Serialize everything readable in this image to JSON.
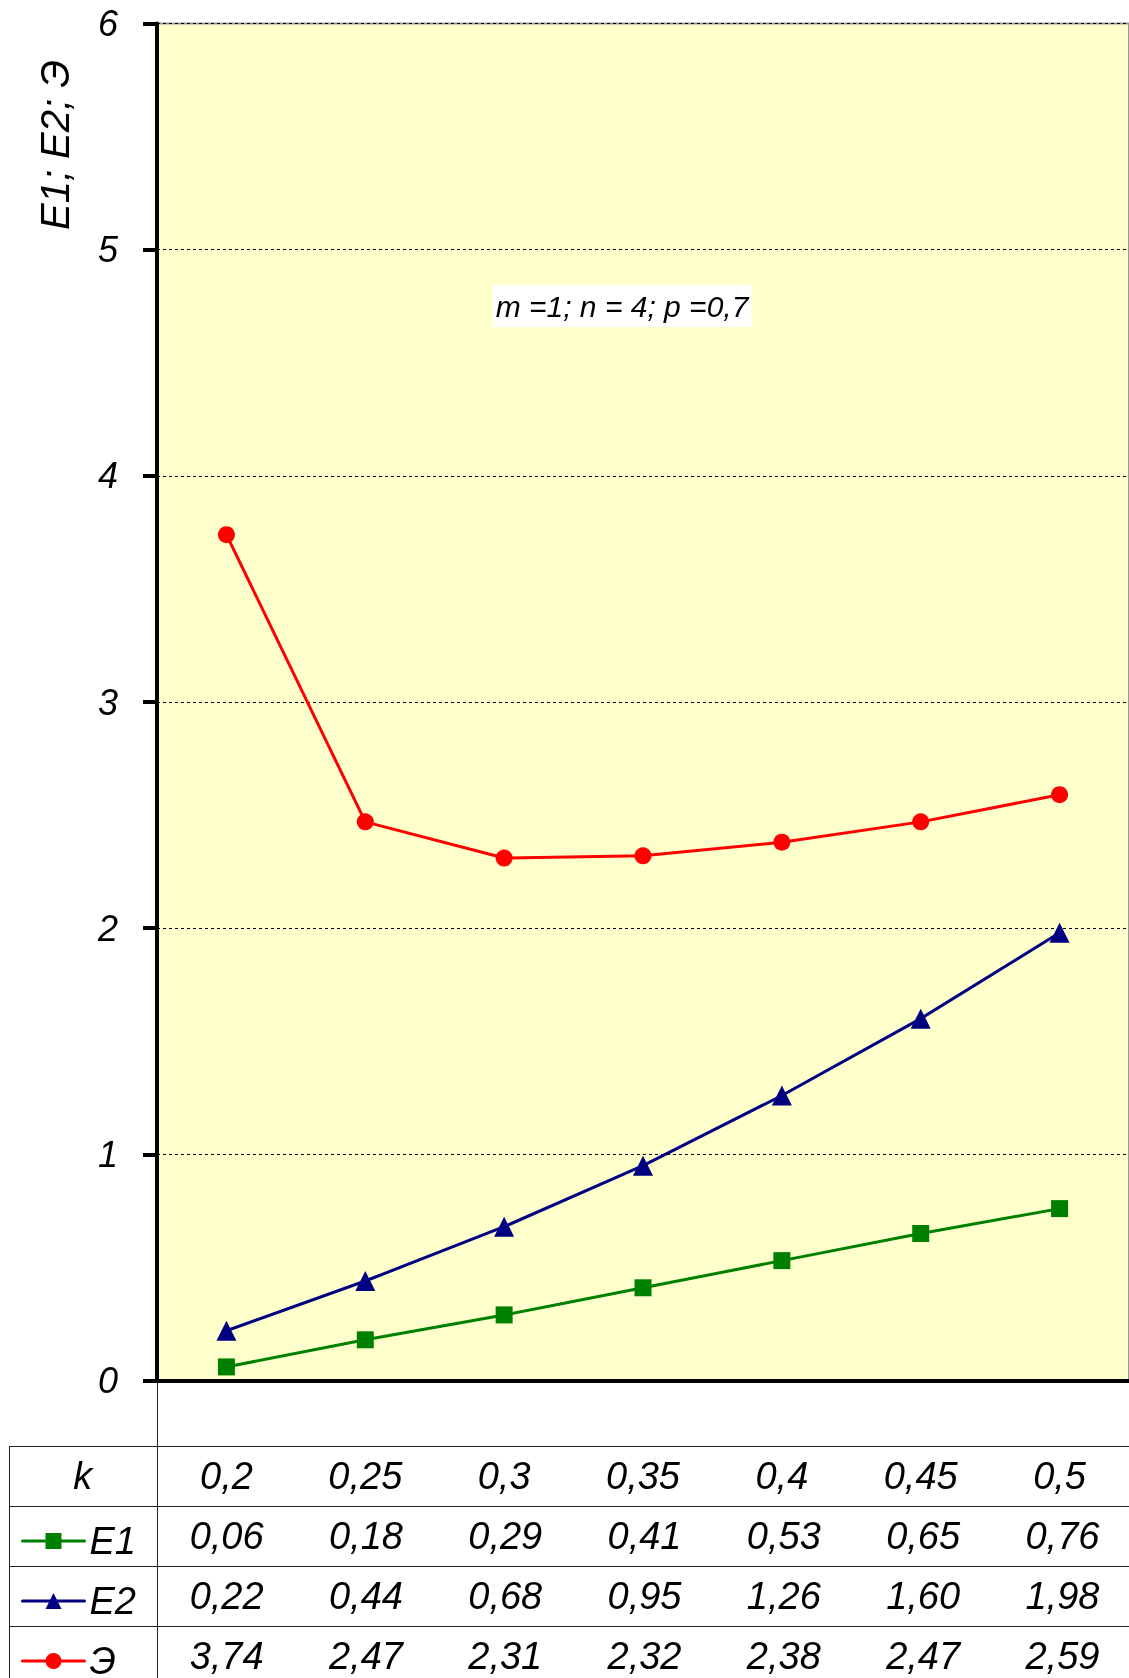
{
  "chart_data": {
    "type": "line",
    "ylabel": "E1; E2; Э",
    "xlabel": "k",
    "categories": [
      "0,2",
      "0,25",
      "0,3",
      "0,35",
      "0,4",
      "0,45",
      "0,5"
    ],
    "series": [
      {
        "name": "E1",
        "color": "#008000",
        "marker": "square",
        "values": [
          0.06,
          0.18,
          0.29,
          0.41,
          0.53,
          0.65,
          0.76
        ],
        "value_labels": [
          "0,06",
          "0,18",
          "0,29",
          "0,41",
          "0,53",
          "0,65",
          "0,76"
        ]
      },
      {
        "name": "E2",
        "color": "#000080",
        "marker": "triangle",
        "values": [
          0.22,
          0.44,
          0.68,
          0.95,
          1.26,
          1.6,
          1.98
        ],
        "value_labels": [
          "0,22",
          "0,44",
          "0,68",
          "0,95",
          "1,26",
          "1,60",
          "1,98"
        ]
      },
      {
        "name": "Э",
        "color": "#ff0000",
        "marker": "circle",
        "values": [
          3.74,
          2.47,
          2.31,
          2.32,
          2.38,
          2.47,
          2.59
        ],
        "value_labels": [
          "3,74",
          "2,47",
          "2,31",
          "2,32",
          "2,38",
          "2,47",
          "2,59"
        ]
      }
    ],
    "ylim": [
      0,
      6
    ],
    "yticks": [
      0,
      1,
      2,
      3,
      4,
      5,
      6
    ],
    "grid": "y",
    "legend": "bottom left",
    "line_style": "solid",
    "annotations": [
      "m =1; n = 4; p =0,7"
    ]
  }
}
